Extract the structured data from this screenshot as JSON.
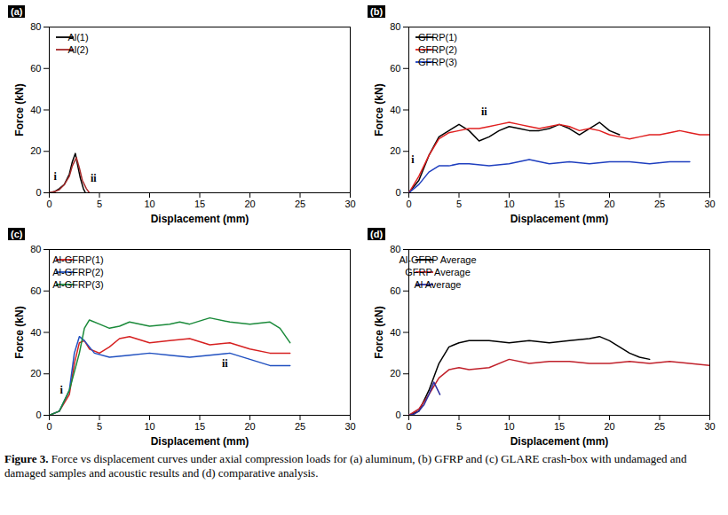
{
  "chart_data": [
    {
      "type": "line",
      "panel_label": "(a)",
      "x_label": "Displacement (mm)",
      "y_label": "Force (kN)",
      "xlim": [
        0,
        30
      ],
      "xticks": [
        0,
        5,
        10,
        15,
        20,
        25,
        30
      ],
      "ylim": [
        0,
        80
      ],
      "yticks": [
        0,
        20,
        40,
        60,
        80
      ],
      "grid": false,
      "legend": "top-left",
      "series": [
        {
          "name": "Al(1)",
          "color": "#000000",
          "x": [
            0,
            0.5,
            1,
            1.5,
            2,
            2.3,
            2.6,
            2.8,
            3.1,
            3.4,
            3.6
          ],
          "values": [
            0,
            0.5,
            2,
            4,
            9,
            15,
            19,
            14,
            7,
            2,
            0
          ]
        },
        {
          "name": "Al(2)",
          "color": "#a52a2a",
          "x": [
            0,
            0.5,
            1,
            1.5,
            2,
            2.3,
            2.7,
            3,
            3.3,
            3.7,
            4
          ],
          "values": [
            0,
            0.5,
            1.5,
            4,
            8,
            13,
            17,
            12,
            6,
            2,
            0
          ]
        }
      ],
      "annotations": [
        {
          "text": "i",
          "x": 0.6,
          "y": 8
        },
        {
          "text": "ii",
          "x": 4.4,
          "y": 7
        }
      ]
    },
    {
      "type": "line",
      "panel_label": "(b)",
      "x_label": "Displacement (mm)",
      "y_label": "Force (kN)",
      "xlim": [
        0,
        30
      ],
      "xticks": [
        0,
        5,
        10,
        15,
        20,
        25,
        30
      ],
      "ylim": [
        0,
        80
      ],
      "yticks": [
        0,
        20,
        40,
        60,
        80
      ],
      "grid": false,
      "legend": "top-left",
      "series": [
        {
          "name": "GFRP(1)",
          "color": "#000000",
          "x": [
            0,
            1,
            2,
            3,
            4,
            5,
            6,
            7,
            8,
            9,
            10,
            11,
            12,
            13,
            14,
            15,
            16,
            17,
            18,
            19,
            20,
            21
          ],
          "values": [
            0,
            6,
            18,
            27,
            30,
            33,
            30,
            25,
            27,
            30,
            32,
            31,
            30,
            30,
            31,
            33,
            31,
            28,
            31,
            34,
            30,
            28
          ]
        },
        {
          "name": "GFRP(2)",
          "color": "#e02020",
          "x": [
            0,
            1,
            2,
            3,
            4,
            5,
            6,
            7,
            8,
            9,
            10,
            11,
            12,
            13,
            14,
            15,
            16,
            17,
            18,
            19,
            20,
            21,
            22,
            23,
            24,
            25,
            26,
            27,
            28,
            29,
            30
          ],
          "values": [
            0,
            8,
            18,
            26,
            29,
            30,
            31,
            31,
            32,
            33,
            34,
            33,
            32,
            31,
            32,
            33,
            32,
            30,
            31,
            30,
            28,
            27,
            26,
            27,
            28,
            28,
            29,
            30,
            29,
            28,
            28
          ]
        },
        {
          "name": "GFRP(3)",
          "color": "#1f3fbf",
          "x": [
            0,
            1,
            2,
            3,
            4,
            5,
            6,
            8,
            10,
            12,
            14,
            16,
            18,
            20,
            22,
            24,
            26,
            28
          ],
          "values": [
            0,
            4,
            10,
            13,
            13,
            14,
            14,
            13,
            14,
            16,
            14,
            15,
            14,
            15,
            15,
            14,
            15,
            15
          ]
        }
      ],
      "annotations": [
        {
          "text": "i",
          "x": 0.4,
          "y": 16
        },
        {
          "text": "ii",
          "x": 7.5,
          "y": 39
        }
      ]
    },
    {
      "type": "line",
      "panel_label": "(c)",
      "x_label": "Displacement (mm)",
      "y_label": "Force (kN)",
      "xlim": [
        0,
        30
      ],
      "xticks": [
        0,
        5,
        10,
        15,
        20,
        25,
        30
      ],
      "ylim": [
        0,
        80
      ],
      "yticks": [
        0,
        20,
        40,
        60,
        80
      ],
      "grid": false,
      "legend": "top-left",
      "series": [
        {
          "name": "Al-GFRP(1)",
          "color": "#d62020",
          "x": [
            0,
            1,
            2,
            2.5,
            3,
            3.5,
            4,
            5,
            6,
            7,
            8,
            10,
            12,
            14,
            16,
            18,
            20,
            22,
            24
          ],
          "values": [
            0,
            2,
            10,
            25,
            35,
            36,
            32,
            30,
            33,
            37,
            38,
            35,
            36,
            37,
            34,
            35,
            32,
            30,
            30
          ]
        },
        {
          "name": "Al-GFRP(2)",
          "color": "#2050c0",
          "x": [
            0,
            1,
            2,
            2.5,
            3,
            3.5,
            4.5,
            6,
            8,
            10,
            12,
            14,
            16,
            18,
            20,
            22,
            24
          ],
          "values": [
            0,
            2,
            12,
            30,
            38,
            36,
            30,
            28,
            29,
            30,
            29,
            28,
            29,
            30,
            27,
            24,
            24
          ]
        },
        {
          "name": "Al-GFRP(3)",
          "color": "#1a8a3a",
          "x": [
            0,
            1,
            2,
            3,
            3.5,
            4,
            5,
            6,
            7,
            8,
            10,
            12,
            13,
            14,
            16,
            18,
            20,
            22,
            23,
            24
          ],
          "values": [
            0,
            2,
            12,
            30,
            42,
            46,
            44,
            42,
            43,
            45,
            43,
            44,
            45,
            44,
            47,
            45,
            44,
            45,
            42,
            35
          ]
        }
      ],
      "annotations": [
        {
          "text": "i",
          "x": 1.2,
          "y": 12
        },
        {
          "text": "ii",
          "x": 17.5,
          "y": 25
        }
      ]
    },
    {
      "type": "line",
      "panel_label": "(d)",
      "x_label": "Displacement (mm)",
      "y_label": "Force (kN)",
      "xlim": [
        0,
        30
      ],
      "xticks": [
        0,
        5,
        10,
        15,
        20,
        25,
        30
      ],
      "ylim": [
        0,
        80
      ],
      "yticks": [
        0,
        20,
        40,
        60,
        80
      ],
      "grid": false,
      "legend": "top-left",
      "series": [
        {
          "name": "Al-GFRP Average",
          "color": "#000000",
          "x": [
            0,
            1,
            2,
            3,
            4,
            5,
            6,
            8,
            10,
            12,
            14,
            16,
            18,
            19,
            20,
            21,
            22,
            23,
            24
          ],
          "values": [
            0,
            2,
            12,
            25,
            33,
            35,
            36,
            36,
            35,
            36,
            35,
            36,
            37,
            38,
            36,
            33,
            30,
            28,
            27
          ]
        },
        {
          "name": "GFRP Average",
          "color": "#c0202a",
          "x": [
            0,
            1,
            2,
            3,
            4,
            5,
            6,
            8,
            10,
            12,
            14,
            16,
            18,
            20,
            22,
            24,
            26,
            28,
            30
          ],
          "values": [
            0,
            3,
            10,
            18,
            22,
            23,
            22,
            23,
            27,
            25,
            26,
            26,
            25,
            25,
            26,
            25,
            26,
            25,
            24
          ]
        },
        {
          "name": "Al Average",
          "color": "#3030a0",
          "x": [
            0,
            0.5,
            1,
            1.5,
            2,
            2.5,
            2.8,
            3.1
          ],
          "values": [
            0,
            0.5,
            2,
            5,
            10,
            16,
            13,
            10
          ]
        }
      ],
      "annotations": []
    }
  ],
  "caption": {
    "label": "Figure 3.",
    "text": "Force vs displacement curves under axial compression loads for (a) aluminum, (b) GFRP and (c) GLARE crash-box with undamaged and damaged samples and acoustic results and (d) comparative analysis."
  }
}
